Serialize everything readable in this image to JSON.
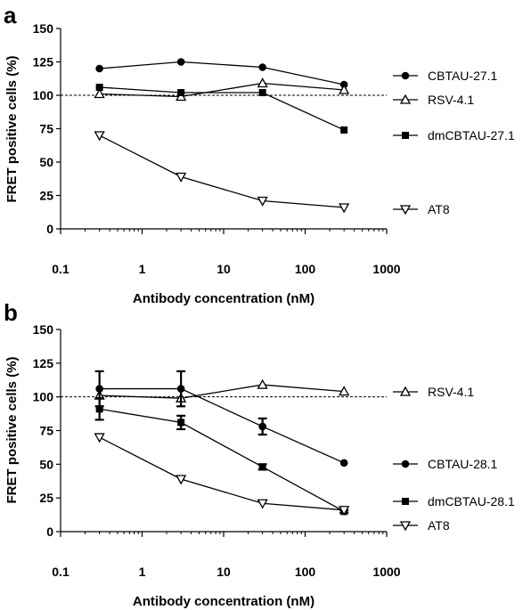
{
  "chart_data": [
    {
      "panel": "a",
      "type": "line",
      "xlabel": "Antibody concentration (nM)",
      "ylabel": "FRET positive cells (%)",
      "xscale": "log",
      "xlim": [
        0.1,
        1000
      ],
      "ylim": [
        0,
        150
      ],
      "xticks": [
        "0.1",
        "1",
        "10",
        "100",
        "1000"
      ],
      "yticks": [
        "0",
        "25",
        "50",
        "75",
        "100",
        "125",
        "150"
      ],
      "reference_line": 100,
      "legend_placement": "right",
      "x": [
        0.3,
        3,
        30,
        300
      ],
      "series": [
        {
          "name": "CBTAU-27.1",
          "marker": "filled-circle",
          "values": [
            120,
            125,
            121,
            108
          ]
        },
        {
          "name": "RSV-4.1",
          "marker": "open-triangle-up",
          "values": [
            101,
            99,
            109,
            104
          ]
        },
        {
          "name": "dmCBTAU-27.1",
          "marker": "filled-square",
          "values": [
            106,
            102,
            102,
            74
          ]
        },
        {
          "name": "AT8",
          "marker": "open-triangle-down",
          "values": [
            70,
            39,
            21,
            16
          ]
        }
      ]
    },
    {
      "panel": "b",
      "type": "line",
      "xlabel": "Antibody concentration (nM)",
      "ylabel": "FRET positive cells (%)",
      "xscale": "log",
      "xlim": [
        0.1,
        1000
      ],
      "ylim": [
        0,
        150
      ],
      "xticks": [
        "0.1",
        "1",
        "10",
        "100",
        "1000"
      ],
      "yticks": [
        "0",
        "25",
        "50",
        "75",
        "100",
        "125",
        "150"
      ],
      "reference_line": 100,
      "legend_placement": "right",
      "x": [
        0.3,
        3,
        30,
        300
      ],
      "series": [
        {
          "name": "RSV-4.1",
          "marker": "open-triangle-up",
          "values": [
            101,
            99,
            109,
            104
          ],
          "errors": [
            0,
            0,
            0,
            0
          ]
        },
        {
          "name": "CBTAU-28.1",
          "marker": "filled-circle",
          "values": [
            106,
            106,
            78,
            51
          ],
          "errors": [
            13,
            13,
            6,
            0
          ]
        },
        {
          "name": "dmCBTAU-28.1",
          "marker": "filled-square",
          "values": [
            91,
            81,
            48,
            15
          ],
          "errors": [
            8,
            5,
            2,
            1
          ]
        },
        {
          "name": "AT8",
          "marker": "open-triangle-down",
          "values": [
            70,
            39,
            21,
            16
          ],
          "errors": [
            0,
            0,
            0,
            0
          ]
        }
      ]
    }
  ]
}
